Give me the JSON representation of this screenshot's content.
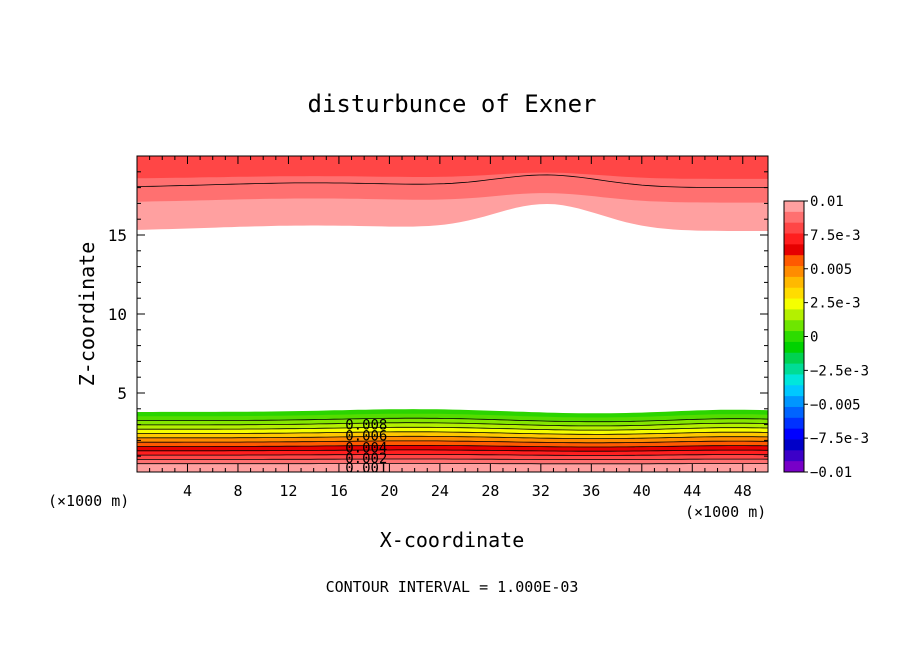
{
  "chart_data": {
    "type": "contour",
    "title": "disturbunce of Exner",
    "xlabel": "X-coordinate",
    "ylabel": "Z-coordinate",
    "x_unit": "(×1000 m)",
    "y_unit": "(×1000 m)",
    "xlim": [
      0,
      50
    ],
    "ylim": [
      0,
      20
    ],
    "x_ticks": [
      4,
      8,
      12,
      16,
      20,
      24,
      28,
      32,
      36,
      40,
      44,
      48
    ],
    "y_ticks": [
      5,
      10,
      15
    ],
    "contour_interval_text": "CONTOUR INTERVAL = 1.000E-03",
    "contour_labels": [
      "0.008",
      "0.006",
      "0.004",
      "0.002",
      "0.001"
    ],
    "colorbar": {
      "labels": [
        "0.01",
        "7.5e-3",
        "0.005",
        "2.5e-3",
        "0",
        "−2.5e-3",
        "−0.005",
        "−7.5e-3",
        "−0.01"
      ],
      "colors": [
        "#ffa0a0",
        "#ff7070",
        "#ff4646",
        "#ff1e1e",
        "#e60000",
        "#ff5a00",
        "#ff8c00",
        "#ffb900",
        "#ffdc00",
        "#f5ff00",
        "#b4f000",
        "#6ee600",
        "#2ddc00",
        "#00d200",
        "#00d250",
        "#00dc96",
        "#00e6dc",
        "#00c8ff",
        "#0096ff",
        "#0064ff",
        "#0032ff",
        "#0000ff",
        "#0000c8",
        "#3c00c8",
        "#7800c8"
      ]
    },
    "bottom_layer_colors": [
      "#2bd400",
      "#55dc00",
      "#85e600",
      "#b4f000",
      "#f5ff00",
      "#ffc800",
      "#ff8c00",
      "#ff5a00",
      "#e60000",
      "#ff1e1e",
      "#ff4646",
      "#ff7070",
      "#ffa0a0"
    ],
    "top_layer_colors": [
      "#ffa0a0",
      "#ff7070",
      "#ff4646"
    ]
  }
}
